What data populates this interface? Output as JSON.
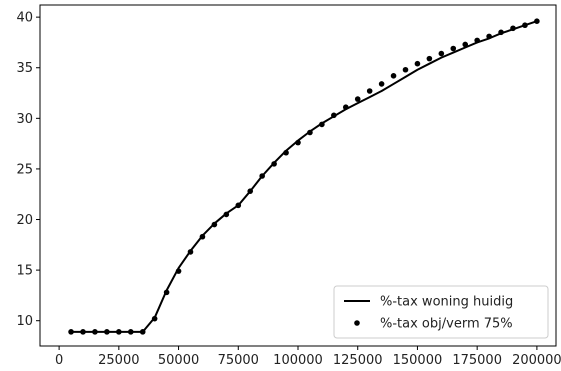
{
  "chart_data": {
    "type": "line",
    "title": "",
    "xlabel": "",
    "ylabel": "",
    "xlim": [
      -8000,
      208000
    ],
    "ylim": [
      7.5,
      41.2
    ],
    "x_ticks": [
      0,
      25000,
      50000,
      75000,
      100000,
      125000,
      150000,
      175000,
      200000
    ],
    "y_ticks": [
      10,
      15,
      20,
      25,
      30,
      35,
      40
    ],
    "grid": false,
    "legend_position": "lower-right",
    "series": [
      {
        "name": "%-tax woning huidig",
        "style": "line",
        "color": "#000000",
        "x": [
          5000,
          10000,
          15000,
          20000,
          25000,
          30000,
          35000,
          40000,
          45000,
          50000,
          55000,
          60000,
          65000,
          70000,
          75000,
          80000,
          85000,
          90000,
          95000,
          100000,
          105000,
          110000,
          115000,
          120000,
          125000,
          130000,
          135000,
          140000,
          145000,
          150000,
          155000,
          160000,
          165000,
          170000,
          175000,
          180000,
          185000,
          190000,
          195000,
          200000
        ],
        "y": [
          8.9,
          8.9,
          8.9,
          8.9,
          8.9,
          8.9,
          8.9,
          10.3,
          13.0,
          15.2,
          16.9,
          18.4,
          19.6,
          20.6,
          21.4,
          22.8,
          24.3,
          25.6,
          26.8,
          27.8,
          28.7,
          29.5,
          30.2,
          30.9,
          31.5,
          32.1,
          32.7,
          33.4,
          34.1,
          34.8,
          35.4,
          36.0,
          36.5,
          37.0,
          37.5,
          37.9,
          38.4,
          38.8,
          39.2,
          39.6
        ]
      },
      {
        "name": "%-tax obj/verm 75%",
        "style": "markers",
        "color": "#000000",
        "x": [
          5000,
          10000,
          15000,
          20000,
          25000,
          30000,
          35000,
          40000,
          45000,
          50000,
          55000,
          60000,
          65000,
          70000,
          75000,
          80000,
          85000,
          90000,
          95000,
          100000,
          105000,
          110000,
          115000,
          120000,
          125000,
          130000,
          135000,
          140000,
          145000,
          150000,
          155000,
          160000,
          165000,
          170000,
          175000,
          180000,
          185000,
          190000,
          195000,
          200000
        ],
        "y": [
          8.9,
          8.9,
          8.9,
          8.9,
          8.9,
          8.9,
          8.9,
          10.2,
          12.8,
          14.9,
          16.8,
          18.3,
          19.5,
          20.5,
          21.4,
          22.8,
          24.3,
          25.5,
          26.6,
          27.6,
          28.6,
          29.4,
          30.3,
          31.1,
          31.9,
          32.7,
          33.4,
          34.2,
          34.8,
          35.4,
          35.9,
          36.4,
          36.9,
          37.3,
          37.7,
          38.1,
          38.5,
          38.9,
          39.2,
          39.6
        ]
      }
    ]
  }
}
